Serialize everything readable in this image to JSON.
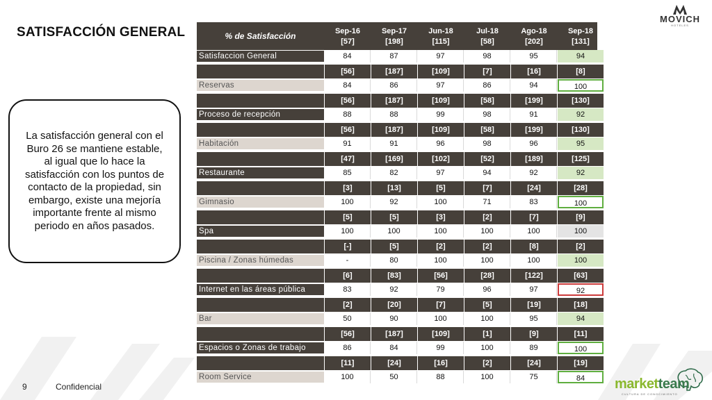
{
  "slide": {
    "title": "SATISFACCIÓN GENERAL",
    "page_number": "9",
    "footer_label": "Confidencial",
    "callout_text": "La satisfacción general con el Buro 26 se mantiene estable, al igual que lo hace la satisfacción con los puntos de contacto de la propiedad, sin embargo, existe una mejoría importante frente al mismo periodo en años pasados.",
    "logo_top": {
      "brand": "MOVICH",
      "sub": "HOTELES"
    },
    "logo_bottom": {
      "part1": "market",
      "part2": "team",
      "tagline": "CULTURA DE CONOCIMIENTO"
    }
  },
  "table": {
    "header_label": "% de Satisfacción",
    "columns": [
      {
        "period": "Sep-16",
        "n": "[57]"
      },
      {
        "period": "Sep-17",
        "n": "[198]"
      },
      {
        "period": "Jun-18",
        "n": "[115]"
      },
      {
        "period": "Jul-18",
        "n": "[58]"
      },
      {
        "period": "Ago-18",
        "n": "[202]"
      },
      {
        "period": "Sep-18",
        "n": "[131]"
      }
    ],
    "rows": [
      {
        "category": "Satisfaccion General",
        "shade": "dark",
        "ns": null,
        "values": [
          "84",
          "87",
          "97",
          "98",
          "95",
          "94"
        ],
        "last_style": "hl-green"
      },
      {
        "category": "Reservas",
        "shade": "light",
        "ns": [
          "[56]",
          "[187]",
          "[109]",
          "[7]",
          "[16]",
          "[8]"
        ],
        "values": [
          "84",
          "86",
          "97",
          "86",
          "94",
          "100"
        ],
        "last_style": "box-green"
      },
      {
        "category": "Proceso de recepción",
        "shade": "dark",
        "ns": [
          "[56]",
          "[187]",
          "[109]",
          "[58]",
          "[199]",
          "[130]"
        ],
        "values": [
          "88",
          "88",
          "99",
          "98",
          "91",
          "92"
        ],
        "last_style": "hl-green"
      },
      {
        "category": "Habitación",
        "shade": "light",
        "ns": [
          "[56]",
          "[187]",
          "[109]",
          "[58]",
          "[199]",
          "[130]"
        ],
        "values": [
          "91",
          "91",
          "96",
          "98",
          "96",
          "95"
        ],
        "last_style": "hl-green"
      },
      {
        "category": "Restaurante",
        "shade": "dark",
        "ns": [
          "[47]",
          "[169]",
          "[102]",
          "[52]",
          "[189]",
          "[125]"
        ],
        "values": [
          "85",
          "82",
          "97",
          "94",
          "92",
          "92"
        ],
        "last_style": "hl-green"
      },
      {
        "category": "Gimnasio",
        "shade": "light",
        "ns": [
          "[3]",
          "[13]",
          "[5]",
          "[7]",
          "[24]",
          "[28]"
        ],
        "values": [
          "100",
          "92",
          "100",
          "71",
          "83",
          "100"
        ],
        "last_style": "box-green"
      },
      {
        "category": "Spa",
        "shade": "dark",
        "ns": [
          "[5]",
          "[5]",
          "[3]",
          "[2]",
          "[7]",
          "[9]"
        ],
        "values": [
          "100",
          "100",
          "100",
          "100",
          "100",
          "100"
        ],
        "last_style": "hl-gray"
      },
      {
        "category": "Piscina / Zonas húmedas",
        "shade": "light",
        "ns": [
          "[-]",
          "[5]",
          "[2]",
          "[2]",
          "[8]",
          "[2]"
        ],
        "values": [
          "-",
          "80",
          "100",
          "100",
          "100",
          "100"
        ],
        "last_style": "hl-green"
      },
      {
        "category": "Internet en las áreas pública",
        "shade": "dark",
        "ns": [
          "[6]",
          "[83]",
          "[56]",
          "[28]",
          "[122]",
          "[63]"
        ],
        "values": [
          "83",
          "92",
          "79",
          "96",
          "97",
          "92"
        ],
        "last_style": "box-red"
      },
      {
        "category": "Bar",
        "shade": "light",
        "ns": [
          "[2]",
          "[20]",
          "[7]",
          "[5]",
          "[19]",
          "[18]"
        ],
        "values": [
          "50",
          "90",
          "100",
          "100",
          "95",
          "94"
        ],
        "last_style": "hl-green"
      },
      {
        "category": "Espacios o Zonas de trabajo",
        "shade": "dark",
        "ns": [
          "[56]",
          "[187]",
          "[109]",
          "[1]",
          "[9]",
          "[11]"
        ],
        "values": [
          "86",
          "84",
          "99",
          "100",
          "89",
          "100"
        ],
        "last_style": "box-green"
      },
      {
        "category": "Room Service",
        "shade": "light",
        "ns": [
          "[11]",
          "[24]",
          "[16]",
          "[2]",
          "[24]",
          "[19]"
        ],
        "values": [
          "100",
          "50",
          "88",
          "100",
          "75",
          "84"
        ],
        "last_style": "box-green"
      }
    ]
  }
}
